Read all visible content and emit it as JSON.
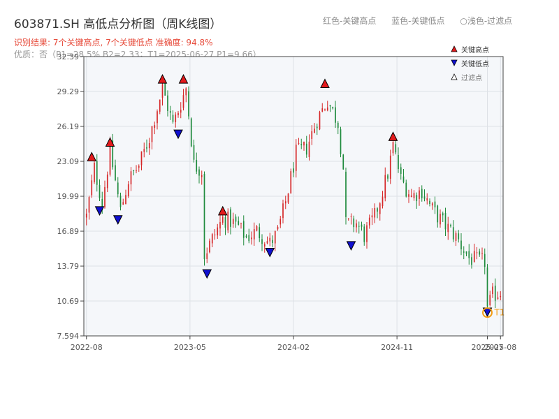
{
  "header": {
    "title": "603871.SH 高低点分析图（周K线图）",
    "legend_red": "红色-关键高点",
    "legend_blue": "蓝色-关键低点",
    "legend_hollow": "○浅色-过滤点",
    "result_line": "识别结果: 7个关键高点, 7个关键低点  准确度: 94.8%",
    "quality_line": "优质：否（P1=28.5%  B2=2.33；T1=2025-06-27 P1=9.66）"
  },
  "colors": {
    "up": "#d62728",
    "down": "#1e8a3c",
    "high_marker": "#e31a1c",
    "low_marker": "#1010d0",
    "t1_marker": "#f39c12"
  },
  "chart_data": {
    "type": "candlestick",
    "title": "603871.SH 高低点分析图（周K线图）",
    "ylim": [
      7.594,
      32.39
    ],
    "y_ticks": [
      "7.594",
      "10.69",
      "13.79",
      "16.89",
      "19.99",
      "23.09",
      "26.19",
      "29.29",
      "32.39"
    ],
    "y_tick_values": [
      7.594,
      10.69,
      13.79,
      16.89,
      19.99,
      23.09,
      26.19,
      29.29,
      32.39
    ],
    "x_ticks": [
      "2022-08",
      "2023-05",
      "2024-02",
      "2024-11",
      "2025-07",
      "2025-08"
    ],
    "x_tick_positions": [
      0,
      39.5,
      79,
      118.5,
      153,
      158
    ],
    "x_domain": [
      -1,
      159
    ],
    "legend": {
      "high": "关键高点",
      "low": "关键低点",
      "filtered": "过滤点",
      "position": "top-right"
    },
    "anchors": [
      [
        0,
        18.2
      ],
      [
        3,
        22.5
      ],
      [
        6,
        19.4
      ],
      [
        9,
        24.0
      ],
      [
        13,
        18.7
      ],
      [
        16,
        21.4
      ],
      [
        20,
        22.7
      ],
      [
        24,
        25.2
      ],
      [
        29,
        29.6
      ],
      [
        33,
        26.3
      ],
      [
        38,
        29.6
      ],
      [
        41,
        22.8
      ],
      [
        44,
        22.3
      ],
      [
        45,
        14.8
      ],
      [
        48,
        16.2
      ],
      [
        52,
        18.0
      ],
      [
        55,
        17.8
      ],
      [
        58,
        17.3
      ],
      [
        61,
        16.3
      ],
      [
        65,
        16.9
      ],
      [
        70,
        15.8
      ],
      [
        73,
        16.8
      ],
      [
        76,
        19.5
      ],
      [
        80,
        23.8
      ],
      [
        84,
        24.3
      ],
      [
        88,
        26.8
      ],
      [
        92,
        28.5
      ],
      [
        96,
        26.5
      ],
      [
        98,
        22.5
      ],
      [
        99,
        17.5
      ],
      [
        103,
        17.6
      ],
      [
        106,
        16.5
      ],
      [
        110,
        18.2
      ],
      [
        115,
        22.0
      ],
      [
        117,
        24.5
      ],
      [
        120,
        21.5
      ],
      [
        124,
        20.0
      ],
      [
        128,
        20.5
      ],
      [
        132,
        18.8
      ],
      [
        137,
        17.4
      ],
      [
        141,
        16.4
      ],
      [
        146,
        14.5
      ],
      [
        150,
        14.2
      ],
      [
        152,
        14.2
      ],
      [
        153,
        10.0
      ],
      [
        155,
        11.2
      ],
      [
        158,
        11.5
      ]
    ],
    "key_highs": [
      {
        "x": 2,
        "y": 23.5
      },
      {
        "x": 9,
        "y": 24.8
      },
      {
        "x": 29,
        "y": 30.4
      },
      {
        "x": 37,
        "y": 30.4
      },
      {
        "x": 52,
        "y": 18.7
      },
      {
        "x": 91,
        "y": 30.0
      },
      {
        "x": 117,
        "y": 25.3
      }
    ],
    "key_lows": [
      {
        "x": 5,
        "y": 18.7
      },
      {
        "x": 12,
        "y": 17.9
      },
      {
        "x": 35,
        "y": 25.5
      },
      {
        "x": 46,
        "y": 13.1
      },
      {
        "x": 70,
        "y": 15.0
      },
      {
        "x": 101,
        "y": 15.6
      },
      {
        "x": 153,
        "y": 9.7
      }
    ],
    "t1": {
      "x": 153,
      "y": 9.66,
      "label": "T1"
    }
  }
}
